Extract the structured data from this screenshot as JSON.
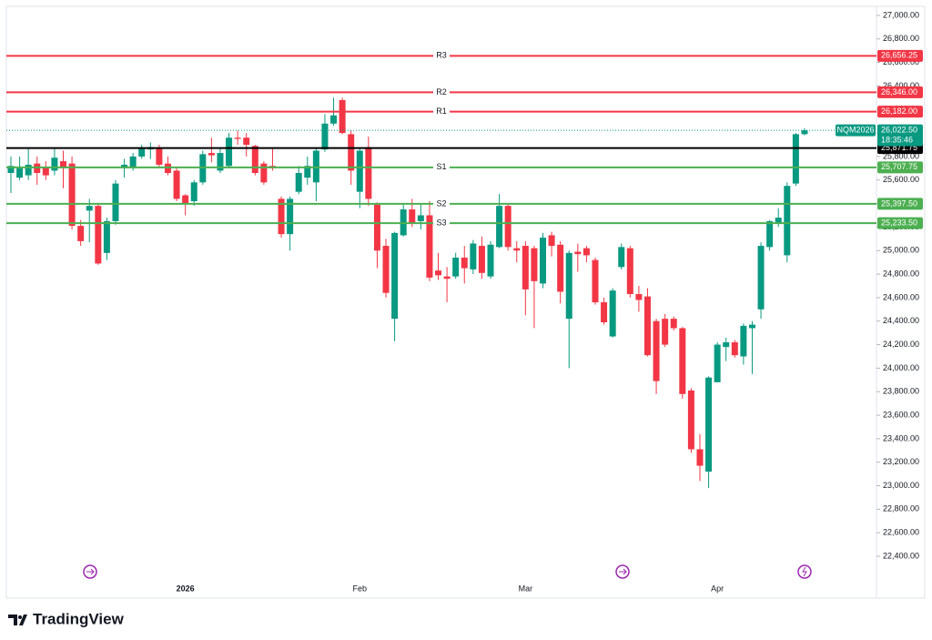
{
  "chart_data": {
    "type": "candlestick",
    "categories": [
      null,
      null,
      null,
      null,
      null,
      null,
      null,
      null,
      null,
      null,
      null,
      null,
      null,
      null,
      null,
      null,
      null,
      null,
      null,
      null,
      "2026",
      null,
      null,
      null,
      null,
      null,
      null,
      null,
      null,
      null,
      null,
      null,
      null,
      null,
      null,
      null,
      null,
      null,
      null,
      null,
      "Feb",
      null,
      null,
      null,
      null,
      null,
      null,
      null,
      null,
      null,
      null,
      null,
      null,
      null,
      null,
      null,
      null,
      null,
      null,
      "Mar",
      null,
      null,
      null,
      null,
      null,
      null,
      null,
      null,
      null,
      null,
      null,
      null,
      null,
      null,
      null,
      null,
      null,
      null,
      null,
      null,
      null,
      "Apr",
      null,
      null,
      null,
      null,
      null,
      null,
      null,
      null,
      null,
      null
    ],
    "open": [
      25660,
      25620,
      25640,
      25740,
      25710,
      25680,
      25760,
      25740,
      25210,
      25340,
      25380,
      24980,
      25250,
      25700,
      25700,
      25800,
      25860,
      25870,
      25740,
      25680,
      25470,
      25420,
      25580,
      25830,
      25680,
      25720,
      25960,
      25960,
      25890,
      25740,
      25720,
      25440,
      25140,
      25500,
      25620,
      25580,
      25860,
      26080,
      26280,
      25990,
      25500,
      25880,
      25390,
      25040,
      24420,
      25130,
      25350,
      25250,
      25300,
      24830,
      24780,
      24780,
      24940,
      24840,
      25040,
      24780,
      25030,
      25380,
      25020,
      25040,
      25020,
      24720,
      25130,
      25050,
      24420,
      24990,
      25020,
      24920,
      24560,
      24270,
      24860,
      25020,
      24630,
      24610,
      24400,
      24420,
      24420,
      24340,
      23810,
      23310,
      23120,
      23880,
      24180,
      24220,
      24100,
      24340,
      24500,
      25030,
      25230,
      24960,
      25570,
      25990
    ],
    "high": [
      25800,
      25800,
      25870,
      25800,
      25760,
      25870,
      25850,
      25800,
      25260,
      25440,
      25400,
      25280,
      25600,
      25780,
      25830,
      25900,
      25920,
      25900,
      25800,
      25700,
      25480,
      25600,
      25850,
      25960,
      25870,
      26000,
      26020,
      26000,
      25900,
      25760,
      25870,
      25460,
      25460,
      25720,
      25800,
      25870,
      26160,
      26300,
      26300,
      26020,
      25870,
      25970,
      25410,
      25100,
      25160,
      25390,
      25440,
      25400,
      25420,
      24980,
      24860,
      24980,
      25040,
      25090,
      25120,
      25080,
      25480,
      25400,
      25080,
      25080,
      25040,
      25150,
      25160,
      25080,
      25000,
      25060,
      25040,
      24940,
      24600,
      24680,
      25060,
      25040,
      24700,
      24680,
      24420,
      24460,
      24440,
      24350,
      23830,
      23440,
      23930,
      24220,
      24260,
      24240,
      24380,
      24400,
      25070,
      25260,
      25360,
      25580,
      26000,
      26040
    ],
    "low": [
      25490,
      25600,
      25600,
      25560,
      25600,
      25640,
      25530,
      25180,
      25040,
      25070,
      24880,
      24920,
      25220,
      25620,
      25680,
      25780,
      25780,
      25700,
      25640,
      25420,
      25300,
      25380,
      25560,
      25750,
      25660,
      25700,
      25900,
      25800,
      25640,
      25560,
      25680,
      25110,
      25000,
      25480,
      25560,
      25420,
      25840,
      26060,
      25990,
      25560,
      25360,
      25380,
      24850,
      24600,
      24230,
      25120,
      25200,
      25180,
      24740,
      24750,
      24560,
      24760,
      24720,
      24800,
      24760,
      24760,
      25020,
      25000,
      24900,
      24450,
      24340,
      24680,
      24950,
      24550,
      24000,
      24820,
      24900,
      24540,
      24370,
      24260,
      24840,
      24600,
      24480,
      24100,
      23780,
      24180,
      24320,
      23740,
      23280,
      23040,
      22980,
      23880,
      24060,
      24090,
      24030,
      23950,
      24420,
      25000,
      25200,
      24900,
      25550,
      25980
    ],
    "close": [
      25720,
      25700,
      25730,
      25660,
      25640,
      25790,
      25700,
      25210,
      25080,
      25380,
      24890,
      25250,
      25570,
      25730,
      25800,
      25870,
      25880,
      25730,
      25660,
      25440,
      25400,
      25580,
      25820,
      25810,
      25830,
      25960,
      25950,
      25900,
      25660,
      25580,
      25700,
      25140,
      25440,
      25660,
      25720,
      25850,
      26080,
      26150,
      26000,
      25680,
      25850,
      25440,
      25000,
      24640,
      25150,
      25350,
      25230,
      25300,
      24770,
      24790,
      24760,
      24940,
      24850,
      25060,
      24810,
      25050,
      25380,
      25030,
      25000,
      24670,
      24740,
      25110,
      25040,
      24650,
      24980,
      24970,
      24960,
      24560,
      24390,
      24660,
      25030,
      24630,
      24580,
      24110,
      23890,
      24200,
      24340,
      23780,
      23310,
      23170,
      23920,
      24200,
      24220,
      24110,
      24360,
      24370,
      25040,
      25250,
      25280,
      25550,
      25990,
      26022.5
    ],
    "up_color": "#089981",
    "down_color": "#f23645",
    "ylim": [
      22044,
      27077
    ],
    "yticks": [
      {
        "value": 22400,
        "label": "22,400.00"
      },
      {
        "value": 22600,
        "label": "22,600.00"
      },
      {
        "value": 22800,
        "label": "22,800.00"
      },
      {
        "value": 23000,
        "label": "23,000.00"
      },
      {
        "value": 23200,
        "label": "23,200.00"
      },
      {
        "value": 23400,
        "label": "23,400.00"
      },
      {
        "value": 23600,
        "label": "23,600.00"
      },
      {
        "value": 23800,
        "label": "23,800.00"
      },
      {
        "value": 24000,
        "label": "24,000.00"
      },
      {
        "value": 24200,
        "label": "24,200.00"
      },
      {
        "value": 24400,
        "label": "24,400.00"
      },
      {
        "value": 24600,
        "label": "24,600.00"
      },
      {
        "value": 24800,
        "label": "24,800.00"
      },
      {
        "value": 25000,
        "label": "25,000.00"
      },
      {
        "value": 25200,
        "label": "25,200.00"
      },
      {
        "value": 25400,
        "label": "25,400.00"
      },
      {
        "value": 25600,
        "label": "25,600.00"
      },
      {
        "value": 25800,
        "label": "25,800.00"
      },
      {
        "value": 26000,
        "label": "26,000.00"
      },
      {
        "value": 26200,
        "label": "26,200.00"
      },
      {
        "value": 26400,
        "label": "26,400.00"
      },
      {
        "value": 26600,
        "label": "26,600.00"
      },
      {
        "value": 26800,
        "label": "26,800.00"
      },
      {
        "value": 27000,
        "label": "27,000.00"
      }
    ],
    "levels": [
      {
        "name": "R3",
        "value": 26656.25,
        "value_label": "26,656.25",
        "color": "#f23645"
      },
      {
        "name": "R2",
        "value": 26346,
        "value_label": "26,346.00",
        "color": "#f23645"
      },
      {
        "name": "R1",
        "value": 26182,
        "value_label": "26,182.00",
        "color": "#f23645"
      },
      {
        "name": "S1",
        "value": 25707.75,
        "value_label": "25,707.75",
        "color": "#4caf50"
      },
      {
        "name": "S2",
        "value": 25397.5,
        "value_label": "25,397.50",
        "color": "#4caf50"
      },
      {
        "name": "S3",
        "value": 25233.5,
        "value_label": "25,233.50",
        "color": "#4caf50"
      }
    ],
    "reference_line": {
      "value": 25871.75,
      "value_label": "25,871.75",
      "color": "#000000"
    },
    "last_price": {
      "symbol": "NQM2026",
      "value": 26022.5,
      "value_label": "26,022.50",
      "countdown": "18:35:46",
      "color": "#089981"
    },
    "brand": "TradingView"
  }
}
